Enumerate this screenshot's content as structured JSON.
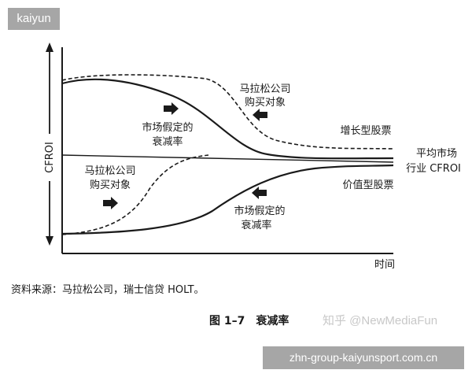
{
  "badge_top": "kaiyun",
  "badge_bottom": "zhn-group-kaiyunsport.com.cn",
  "axis": {
    "y_label": "CFROI",
    "x_label": "时间"
  },
  "labels": {
    "mars_top": [
      "马拉松公司",
      "购买对象"
    ],
    "fade_top": [
      "市场假定的",
      "衰减率"
    ],
    "growth_stock": "增长型股票",
    "average": [
      "平均市场",
      "行业 CFROI"
    ],
    "mars_bottom": [
      "马拉松公司",
      "购买对象"
    ],
    "value_stock": "价值型股票",
    "fade_bottom": [
      "市场假定的",
      "衰减率"
    ]
  },
  "source_note": "资料来源：马拉松公司，瑞士信贷 HOLT。",
  "figure_caption": "图 1–7　衰减率",
  "watermark": "知乎 @NewMediaFun",
  "colors": {
    "badge_bg": "#a6a6a6",
    "ink": "#1a1a1a",
    "watermark": "#c8c8c8"
  }
}
